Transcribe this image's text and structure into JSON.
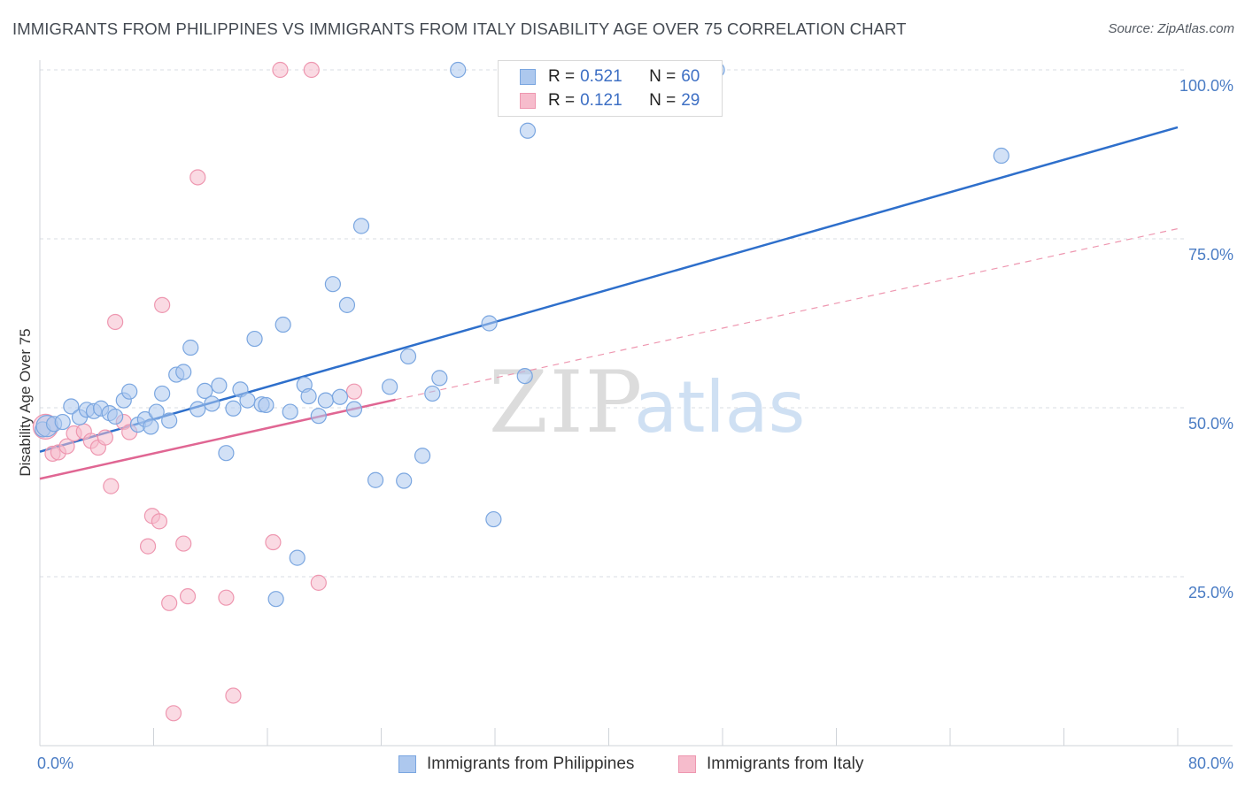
{
  "header": {
    "title": "IMMIGRANTS FROM PHILIPPINES VS IMMIGRANTS FROM ITALY DISABILITY AGE OVER 75 CORRELATION CHART",
    "source": "Source: ZipAtlas.com"
  },
  "watermark": {
    "zip": "ZIP",
    "atlas": "atlas"
  },
  "colors": {
    "philippines_fill": "#adc8ee",
    "philippines_stroke": "#7aa6e0",
    "philippines_line": "#2e6fcb",
    "italy_fill": "#f6bccc",
    "italy_stroke": "#ee97b0",
    "italy_line": "#e06693",
    "tick_label": "#4a7cc4",
    "grid": "#d9dde3"
  },
  "legend": {
    "rows": [
      {
        "r_label": "R =",
        "r_value": "0.521",
        "n_label": "N =",
        "n_value": "60"
      },
      {
        "r_label": "R =",
        "r_value": "0.121",
        "n_label": "N =",
        "n_value": "29"
      }
    ],
    "placement": "top-center"
  },
  "chart_data": {
    "type": "scatter",
    "title": "IMMIGRANTS FROM PHILIPPINES VS IMMIGRANTS FROM ITALY DISABILITY AGE OVER 75 CORRELATION CHART",
    "xlabel": "",
    "ylabel": "Disability Age Over 75",
    "xlim": [
      0,
      80
    ],
    "ylim": [
      0,
      105
    ],
    "x_tick_labels": [
      "0.0%",
      "80.0%"
    ],
    "y_ticks": [
      25,
      50,
      75,
      100
    ],
    "y_tick_labels": [
      "25.0%",
      "50.0%",
      "75.0%",
      "100.0%"
    ],
    "grid": true,
    "series": [
      {
        "name": "Immigrants from Philippines",
        "r": 0.521,
        "n": 60,
        "trend": {
          "x": [
            0,
            80
          ],
          "y": [
            43.5,
            91.5
          ],
          "style": "solid"
        },
        "points": [
          [
            0.2,
            46.8
          ],
          [
            0.5,
            47.3
          ],
          [
            1.0,
            47.6
          ],
          [
            1.6,
            47.9
          ],
          [
            2.2,
            50.2
          ],
          [
            2.8,
            48.6
          ],
          [
            3.3,
            49.7
          ],
          [
            3.8,
            49.5
          ],
          [
            4.3,
            49.9
          ],
          [
            4.9,
            49.2
          ],
          [
            5.3,
            48.7
          ],
          [
            5.9,
            51.1
          ],
          [
            6.3,
            52.4
          ],
          [
            6.9,
            47.5
          ],
          [
            7.4,
            48.3
          ],
          [
            7.8,
            47.2
          ],
          [
            8.2,
            49.4
          ],
          [
            8.6,
            52.1
          ],
          [
            9.1,
            48.1
          ],
          [
            9.6,
            54.9
          ],
          [
            10.1,
            55.3
          ],
          [
            10.6,
            58.9
          ],
          [
            11.1,
            49.8
          ],
          [
            11.6,
            52.5
          ],
          [
            12.1,
            50.6
          ],
          [
            12.6,
            53.3
          ],
          [
            13.1,
            43.3
          ],
          [
            13.6,
            49.9
          ],
          [
            14.1,
            52.7
          ],
          [
            14.6,
            51.1
          ],
          [
            15.1,
            60.2
          ],
          [
            15.6,
            50.5
          ],
          [
            15.9,
            50.4
          ],
          [
            16.6,
            21.7
          ],
          [
            17.1,
            62.3
          ],
          [
            17.6,
            49.4
          ],
          [
            18.1,
            27.8
          ],
          [
            18.6,
            53.4
          ],
          [
            18.9,
            51.7
          ],
          [
            19.6,
            48.8
          ],
          [
            20.1,
            51.1
          ],
          [
            20.6,
            68.3
          ],
          [
            21.1,
            51.6
          ],
          [
            21.6,
            65.2
          ],
          [
            22.1,
            49.8
          ],
          [
            22.6,
            76.9
          ],
          [
            23.6,
            39.3
          ],
          [
            24.6,
            53.1
          ],
          [
            25.6,
            39.2
          ],
          [
            25.9,
            57.6
          ],
          [
            26.9,
            42.9
          ],
          [
            27.6,
            52.1
          ],
          [
            28.1,
            54.4
          ],
          [
            29.4,
            100.0
          ],
          [
            31.6,
            62.5
          ],
          [
            31.9,
            33.5
          ],
          [
            34.1,
            54.7
          ],
          [
            34.3,
            91.0
          ],
          [
            47.6,
            100.0
          ],
          [
            67.6,
            87.3
          ]
        ]
      },
      {
        "name": "Immigrants from Italy",
        "r": 0.121,
        "n": 29,
        "trend": {
          "x": [
            0,
            25
          ],
          "y": [
            39.5,
            51.2
          ],
          "style": "solid"
        },
        "trend_extension": {
          "x": [
            25,
            80
          ],
          "y": [
            51.2,
            76.5
          ],
          "style": "dashed"
        },
        "points": [
          [
            0.4,
            47.2
          ],
          [
            0.9,
            43.2
          ],
          [
            1.3,
            43.4
          ],
          [
            1.9,
            44.3
          ],
          [
            2.4,
            46.2
          ],
          [
            3.1,
            46.5
          ],
          [
            3.6,
            45.1
          ],
          [
            4.1,
            44.1
          ],
          [
            4.6,
            45.6
          ],
          [
            5.0,
            38.4
          ],
          [
            5.3,
            62.7
          ],
          [
            5.9,
            47.9
          ],
          [
            6.3,
            46.4
          ],
          [
            7.6,
            29.5
          ],
          [
            7.9,
            34.0
          ],
          [
            8.4,
            33.2
          ],
          [
            8.6,
            65.2
          ],
          [
            9.1,
            21.1
          ],
          [
            9.4,
            4.8
          ],
          [
            10.1,
            29.9
          ],
          [
            10.4,
            22.1
          ],
          [
            11.1,
            84.1
          ],
          [
            13.1,
            21.9
          ],
          [
            13.6,
            7.4
          ],
          [
            16.4,
            30.1
          ],
          [
            16.9,
            100.0
          ],
          [
            19.1,
            100.0
          ],
          [
            19.6,
            24.1
          ],
          [
            22.1,
            52.4
          ]
        ]
      }
    ]
  },
  "bottom_legend": {
    "items": [
      {
        "label": "Immigrants from Philippines"
      },
      {
        "label": "Immigrants from Italy"
      }
    ]
  }
}
